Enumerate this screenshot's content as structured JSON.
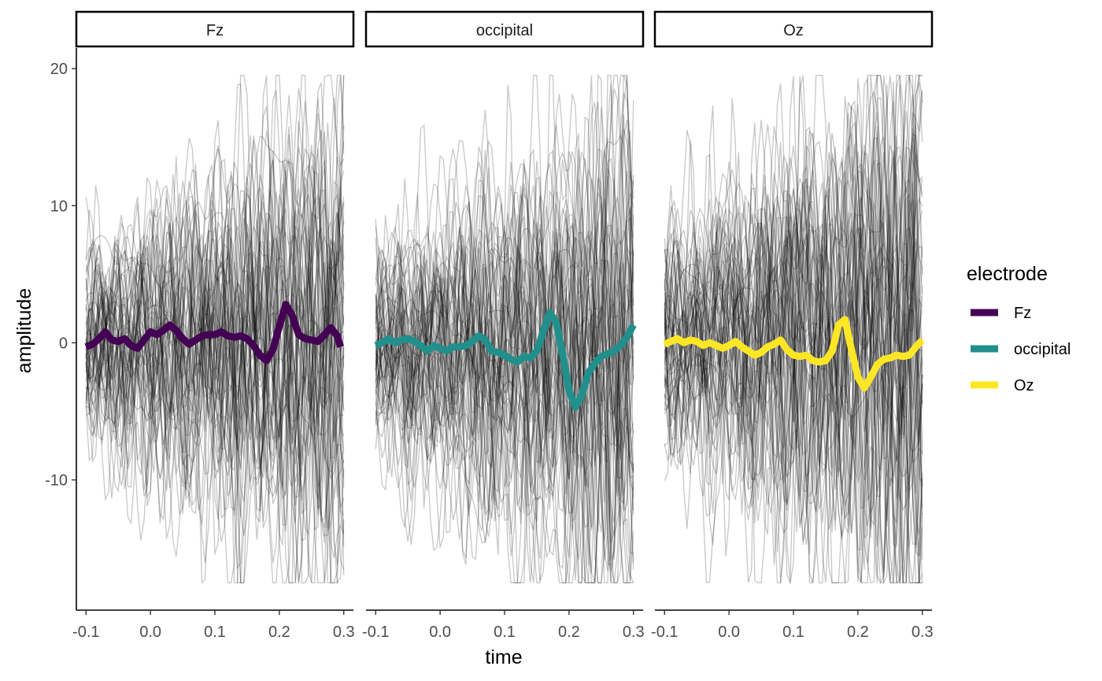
{
  "chart_data": {
    "type": "line",
    "panels": [
      {
        "strip": "Fz",
        "color": "#440154",
        "mean": {
          "x": [
            -0.1,
            -0.09,
            -0.08,
            -0.07,
            -0.06,
            -0.05,
            -0.04,
            -0.03,
            -0.02,
            -0.01,
            0.0,
            0.01,
            0.02,
            0.03,
            0.04,
            0.05,
            0.06,
            0.07,
            0.08,
            0.09,
            0.1,
            0.11,
            0.12,
            0.13,
            0.14,
            0.15,
            0.16,
            0.17,
            0.18,
            0.19,
            0.2,
            0.21,
            0.22,
            0.23,
            0.24,
            0.25,
            0.26,
            0.27,
            0.28,
            0.29,
            0.295
          ],
          "y": [
            -0.3,
            -0.1,
            0.3,
            0.8,
            0.2,
            0.1,
            0.3,
            -0.2,
            -0.4,
            0.2,
            0.8,
            0.6,
            0.9,
            1.3,
            0.9,
            0.3,
            -0.1,
            0.2,
            0.5,
            0.6,
            0.6,
            0.8,
            0.5,
            0.4,
            0.5,
            0.3,
            -0.2,
            -0.9,
            -1.3,
            -0.5,
            1.2,
            2.8,
            2.0,
            0.6,
            0.3,
            0.2,
            0.1,
            0.6,
            1.1,
            0.5,
            -0.3
          ]
        }
      },
      {
        "strip": "occipital",
        "color": "#21908C",
        "mean": {
          "x": [
            -0.1,
            -0.09,
            -0.08,
            -0.07,
            -0.06,
            -0.05,
            -0.04,
            -0.03,
            -0.02,
            -0.01,
            0.0,
            0.01,
            0.02,
            0.03,
            0.04,
            0.05,
            0.06,
            0.07,
            0.08,
            0.09,
            0.1,
            0.11,
            0.12,
            0.13,
            0.14,
            0.15,
            0.16,
            0.17,
            0.18,
            0.19,
            0.2,
            0.21,
            0.22,
            0.23,
            0.24,
            0.25,
            0.26,
            0.27,
            0.28,
            0.29,
            0.3
          ],
          "y": [
            -0.2,
            0.0,
            0.3,
            0.0,
            0.2,
            0.3,
            0.1,
            -0.2,
            -0.6,
            -0.2,
            -0.4,
            -0.6,
            -0.3,
            -0.3,
            -0.2,
            0.1,
            0.5,
            0.2,
            -0.6,
            -0.7,
            -0.9,
            -1.2,
            -1.4,
            -1.0,
            -1.1,
            -0.6,
            0.8,
            2.2,
            1.5,
            -0.8,
            -3.5,
            -4.7,
            -3.8,
            -2.2,
            -1.5,
            -1.0,
            -0.8,
            -0.6,
            -0.2,
            0.4,
            1.3
          ]
        }
      },
      {
        "strip": "Oz",
        "color": "#FDE725",
        "mean": {
          "x": [
            -0.1,
            -0.09,
            -0.08,
            -0.07,
            -0.06,
            -0.05,
            -0.04,
            -0.03,
            -0.02,
            -0.01,
            0.0,
            0.01,
            0.02,
            0.03,
            0.04,
            0.05,
            0.06,
            0.07,
            0.08,
            0.09,
            0.1,
            0.11,
            0.12,
            0.13,
            0.14,
            0.15,
            0.16,
            0.17,
            0.18,
            0.19,
            0.2,
            0.21,
            0.22,
            0.23,
            0.24,
            0.25,
            0.26,
            0.27,
            0.28,
            0.29,
            0.3
          ],
          "y": [
            -0.1,
            0.1,
            0.3,
            0.0,
            0.2,
            0.1,
            -0.2,
            0.0,
            -0.2,
            -0.4,
            -0.2,
            0.1,
            -0.3,
            -0.6,
            -0.9,
            -0.7,
            -0.3,
            -0.1,
            0.2,
            -0.5,
            -0.9,
            -1.0,
            -0.9,
            -1.3,
            -1.4,
            -1.3,
            -0.6,
            1.3,
            1.7,
            -0.5,
            -2.5,
            -3.3,
            -2.5,
            -1.6,
            -1.2,
            -1.1,
            -0.9,
            -1.0,
            -0.9,
            -0.3,
            0.2
          ]
        }
      }
    ],
    "background_trials": {
      "count_per_panel": 60,
      "color": "#000000",
      "opacity": 0.22,
      "approx_range": [
        -17.5,
        19.5
      ]
    },
    "x_ticks": [
      "-0.1",
      "0.0",
      "0.1",
      "0.2",
      "0.3"
    ],
    "x_tick_values": [
      -0.1,
      0.0,
      0.1,
      0.2,
      0.3
    ],
    "y_ticks": [
      "-10",
      "0",
      "10",
      "20"
    ],
    "y_tick_values": [
      -10,
      0,
      10,
      20
    ],
    "xlim": [
      -0.115,
      0.315
    ],
    "ylim": [
      -19.5,
      21.5
    ],
    "xlabel": "time",
    "ylabel": "amplitude",
    "grid": false,
    "legend": {
      "title": "electrode",
      "placement": "right",
      "items": [
        {
          "label": "Fz",
          "color": "#440154"
        },
        {
          "label": "occipital",
          "color": "#21908C"
        },
        {
          "label": "Oz",
          "color": "#FDE725"
        }
      ]
    }
  }
}
